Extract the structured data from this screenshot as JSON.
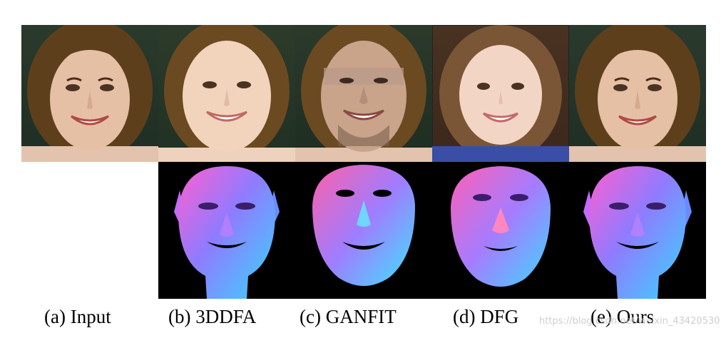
{
  "captions": {
    "input": "(a) Input",
    "threeddfa": "(b) 3DDFA",
    "ganfit": "(c) GANFIT",
    "dfg": "(d) DFG",
    "ours": "(e) Ours"
  },
  "watermark": "https://blog.csdn.net/weixin_43420530",
  "colors": {
    "background": "#ffffff",
    "render_background": "#000000",
    "photo_background": "#1f3b2a",
    "hair": "#6b4a22",
    "skin": "#e9c2a6"
  }
}
